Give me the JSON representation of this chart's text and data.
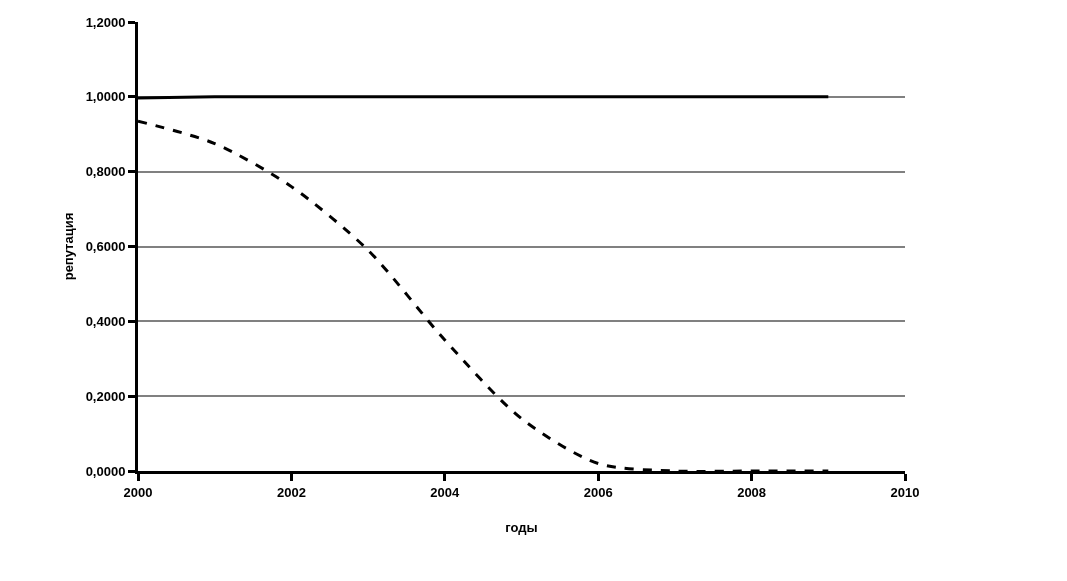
{
  "chart_data": {
    "type": "line",
    "xlabel": "годы",
    "ylabel": "репутация",
    "x": [
      2000,
      2001,
      2002,
      2003,
      2004,
      2005,
      2006,
      2007,
      2008,
      2009
    ],
    "series": [
      {
        "color": "#000000",
        "line_style": "solid",
        "values": [
          0.997,
          1.0,
          1.0,
          1.0,
          1.0,
          1.0,
          1.0,
          1.0,
          1.0,
          1.0
        ]
      },
      {
        "color": "#000000",
        "line_style": "dashed",
        "values": [
          0.935,
          0.875,
          0.76,
          0.59,
          0.35,
          0.14,
          0.02,
          0.0,
          0.0,
          0.0
        ]
      }
    ],
    "xlim": [
      2000,
      2010
    ],
    "xticks": [
      2000,
      2002,
      2004,
      2006,
      2008,
      2010
    ],
    "ylim": [
      0,
      1.2
    ],
    "yticks": [
      {
        "value": 0,
        "label": "0,0000"
      },
      {
        "value": 0.2,
        "label": "0,2000"
      },
      {
        "value": 0.4,
        "label": "0,4000"
      },
      {
        "value": 0.6,
        "label": "0,6000"
      },
      {
        "value": 0.8,
        "label": "0,8000"
      },
      {
        "value": 1.0,
        "label": "1,0000"
      },
      {
        "value": 1.2,
        "label": "1,2000"
      }
    ],
    "grid": "y",
    "marker": "none"
  }
}
